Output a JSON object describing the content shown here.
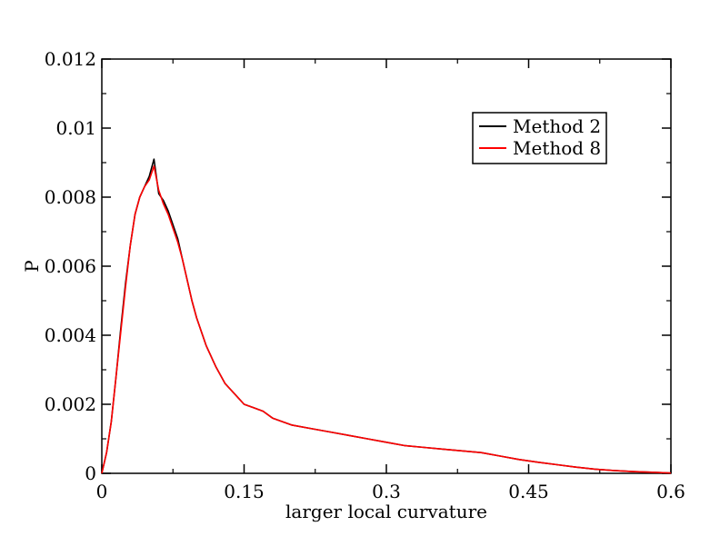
{
  "chart_data": {
    "type": "line",
    "title": "",
    "xlabel": "larger local curvature",
    "ylabel": "P",
    "xlim": [
      0,
      0.6
    ],
    "ylim": [
      0,
      0.012
    ],
    "x_ticks": [
      0,
      0.15,
      0.3,
      0.45,
      0.6
    ],
    "x_tick_labels": [
      "0",
      "0.15",
      "0.3",
      "0.45",
      "0.6"
    ],
    "y_ticks": [
      0,
      0.002,
      0.004,
      0.006,
      0.008,
      0.01,
      0.012
    ],
    "y_tick_labels": [
      "0",
      "0.002",
      "0.004",
      "0.006",
      "0.008",
      "0.01",
      "0.012"
    ],
    "grid": false,
    "legend_position": "top-right",
    "x": [
      0,
      0.005,
      0.01,
      0.015,
      0.02,
      0.025,
      0.03,
      0.035,
      0.04,
      0.045,
      0.05,
      0.055,
      0.06,
      0.065,
      0.07,
      0.075,
      0.08,
      0.085,
      0.09,
      0.095,
      0.1,
      0.11,
      0.12,
      0.13,
      0.14,
      0.15,
      0.16,
      0.17,
      0.18,
      0.19,
      0.2,
      0.22,
      0.24,
      0.26,
      0.28,
      0.3,
      0.32,
      0.34,
      0.36,
      0.38,
      0.4,
      0.42,
      0.44,
      0.46,
      0.48,
      0.5,
      0.52,
      0.54,
      0.56,
      0.58,
      0.6
    ],
    "series": [
      {
        "name": "Method 2",
        "color": "#000000",
        "values": [
          0.0,
          0.0006,
          0.0015,
          0.0028,
          0.0042,
          0.0055,
          0.0066,
          0.0075,
          0.008,
          0.0083,
          0.0086,
          0.0091,
          0.0081,
          0.0079,
          0.0076,
          0.0072,
          0.0068,
          0.0062,
          0.0056,
          0.005,
          0.0045,
          0.0037,
          0.0031,
          0.0026,
          0.0023,
          0.002,
          0.0019,
          0.0018,
          0.0016,
          0.0015,
          0.0014,
          0.0013,
          0.0012,
          0.0011,
          0.001,
          0.0009,
          0.0008,
          0.00075,
          0.0007,
          0.00065,
          0.0006,
          0.0005,
          0.0004,
          0.00032,
          0.00025,
          0.00018,
          0.00012,
          8e-05,
          5e-05,
          3e-05,
          1e-05
        ]
      },
      {
        "name": "Method 8",
        "color": "#ff0000",
        "values": [
          0.0,
          0.0006,
          0.0015,
          0.0028,
          0.0041,
          0.0054,
          0.0066,
          0.0075,
          0.008,
          0.0083,
          0.0085,
          0.0089,
          0.0082,
          0.0078,
          0.0075,
          0.0071,
          0.0067,
          0.0062,
          0.0056,
          0.005,
          0.0045,
          0.0037,
          0.0031,
          0.0026,
          0.0023,
          0.002,
          0.0019,
          0.0018,
          0.0016,
          0.0015,
          0.0014,
          0.0013,
          0.0012,
          0.0011,
          0.001,
          0.0009,
          0.0008,
          0.00075,
          0.0007,
          0.00065,
          0.0006,
          0.0005,
          0.0004,
          0.00032,
          0.00025,
          0.00018,
          0.00012,
          8e-05,
          5e-05,
          3e-05,
          1e-05
        ]
      }
    ]
  }
}
